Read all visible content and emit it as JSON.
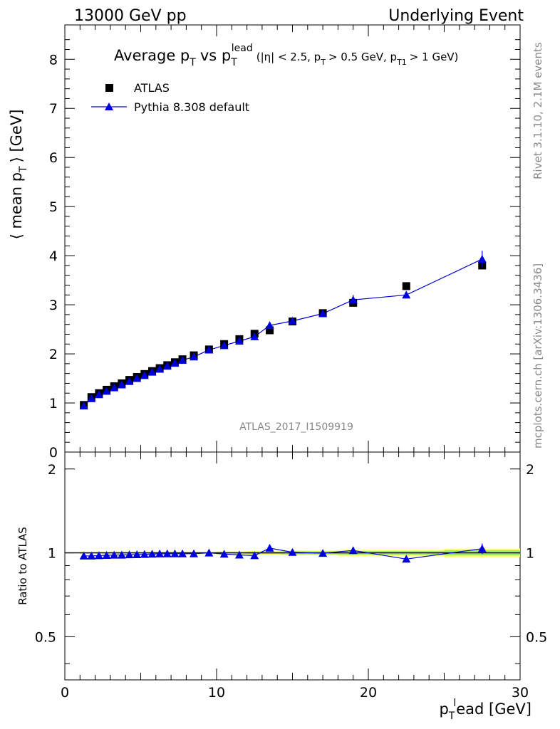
{
  "header": {
    "left": "13000 GeV pp",
    "right": "Underlying Event"
  },
  "side_labels": {
    "rivet": "Rivet 3.1.10,  2.1M events",
    "mcplots": "mcplots.cern.ch [arXiv:1306.3436]"
  },
  "watermark": "ATLAS_2017_I1509919",
  "chart_data": [
    {
      "type": "scatter",
      "title_parts": {
        "main": "Average p",
        "sub_T": "T",
        "vs": "vs p",
        "sub_T2": "T",
        "sup_lead": "lead",
        "cuts": "(|η| < 2.5, p",
        "cuts_T": "T",
        "cuts_mid": "> 0.5 GeV, p",
        "cuts_T1": "T1",
        "cuts_end": "> 1 GeV)"
      },
      "ylabel_parts": {
        "pre": "⟨ mean p",
        "sub": "T",
        "post": "⟩ [GeV]"
      },
      "xlim": [
        0,
        30
      ],
      "ylim": [
        0,
        8.7
      ],
      "yticks": [
        1,
        2,
        3,
        4,
        5,
        6,
        7,
        8
      ],
      "legend": {
        "placement": "top-left",
        "entries": [
          "ATLAS",
          "Pythia 8.308 default"
        ]
      },
      "series": [
        {
          "name": "ATLAS",
          "marker": "square",
          "color": "#000000",
          "x": [
            1.25,
            1.75,
            2.25,
            2.75,
            3.25,
            3.75,
            4.25,
            4.75,
            5.25,
            5.75,
            6.25,
            6.75,
            7.25,
            7.75,
            8.5,
            9.5,
            10.5,
            11.5,
            12.5,
            13.5,
            15,
            17,
            19,
            22.5,
            27.5
          ],
          "y": [
            0.96,
            1.12,
            1.2,
            1.27,
            1.34,
            1.4,
            1.47,
            1.53,
            1.59,
            1.65,
            1.71,
            1.77,
            1.83,
            1.89,
            1.97,
            2.09,
            2.2,
            2.3,
            2.41,
            2.48,
            2.66,
            2.83,
            3.04,
            3.38,
            3.8
          ]
        },
        {
          "name": "Pythia 8.308 default",
          "marker": "triangle",
          "color": "#0000dd",
          "x": [
            1.25,
            1.75,
            2.25,
            2.75,
            3.25,
            3.75,
            4.25,
            4.75,
            5.25,
            5.75,
            6.25,
            6.75,
            7.25,
            7.75,
            8.5,
            9.5,
            10.5,
            11.5,
            12.5,
            13.5,
            15,
            17,
            19,
            22.5,
            27.5
          ],
          "y": [
            0.94,
            1.09,
            1.17,
            1.24,
            1.31,
            1.37,
            1.44,
            1.5,
            1.56,
            1.63,
            1.69,
            1.75,
            1.81,
            1.87,
            1.94,
            2.08,
            2.17,
            2.26,
            2.35,
            2.58,
            2.67,
            2.82,
            3.1,
            3.2,
            3.93
          ],
          "yerr": [
            0.01,
            0.01,
            0.01,
            0.01,
            0.01,
            0.01,
            0.01,
            0.01,
            0.01,
            0.01,
            0.01,
            0.01,
            0.01,
            0.01,
            0.02,
            0.02,
            0.03,
            0.03,
            0.04,
            0.06,
            0.05,
            0.06,
            0.1,
            0.07,
            0.17
          ]
        }
      ]
    },
    {
      "type": "line",
      "ylabel": "Ratio to ATLAS",
      "xlabel_parts": {
        "pre": "p",
        "sub": "T",
        "sup": "l",
        "post": "ead [GeV]"
      },
      "xlim": [
        0,
        30
      ],
      "xticks": [
        0,
        10,
        20,
        30
      ],
      "ylim": [
        0.35,
        2.3
      ],
      "yticks": [
        0.5,
        1,
        2
      ],
      "reference": 1,
      "band": {
        "x": [
          1.25,
          1.75,
          2.25,
          2.75,
          3.25,
          3.75,
          4.25,
          4.75,
          5.25,
          5.75,
          6.25,
          6.75,
          7.25,
          7.75,
          8.5,
          9.5,
          10.5,
          11.5,
          12.5,
          13.5,
          15,
          17,
          19,
          22.5,
          27.5
        ],
        "halfwidth": [
          0.01,
          0.01,
          0.01,
          0.01,
          0.01,
          0.01,
          0.01,
          0.01,
          0.01,
          0.01,
          0.01,
          0.01,
          0.01,
          0.01,
          0.01,
          0.01,
          0.012,
          0.012,
          0.015,
          0.015,
          0.02,
          0.02,
          0.025,
          0.025,
          0.035
        ],
        "colors": [
          "#ffff66",
          "#99ee66"
        ]
      },
      "series": [
        {
          "name": "Pythia 8.308 default",
          "color": "#0000dd",
          "x": [
            1.25,
            1.75,
            2.25,
            2.75,
            3.25,
            3.75,
            4.25,
            4.75,
            5.25,
            5.75,
            6.25,
            6.75,
            7.25,
            7.75,
            8.5,
            9.5,
            10.5,
            11.5,
            12.5,
            13.5,
            15,
            17,
            19,
            22.5,
            27.5
          ],
          "y": [
            0.975,
            0.975,
            0.978,
            0.98,
            0.982,
            0.982,
            0.985,
            0.986,
            0.988,
            0.99,
            0.992,
            0.993,
            0.993,
            0.993,
            0.993,
            1.0,
            0.99,
            0.983,
            0.978,
            1.04,
            1.005,
            0.997,
            1.02,
            0.95,
            1.035
          ],
          "yerr": [
            0.005,
            0.005,
            0.005,
            0.005,
            0.005,
            0.005,
            0.005,
            0.005,
            0.005,
            0.005,
            0.005,
            0.005,
            0.005,
            0.005,
            0.008,
            0.01,
            0.012,
            0.013,
            0.015,
            0.02,
            0.018,
            0.02,
            0.03,
            0.02,
            0.045
          ]
        }
      ]
    }
  ]
}
